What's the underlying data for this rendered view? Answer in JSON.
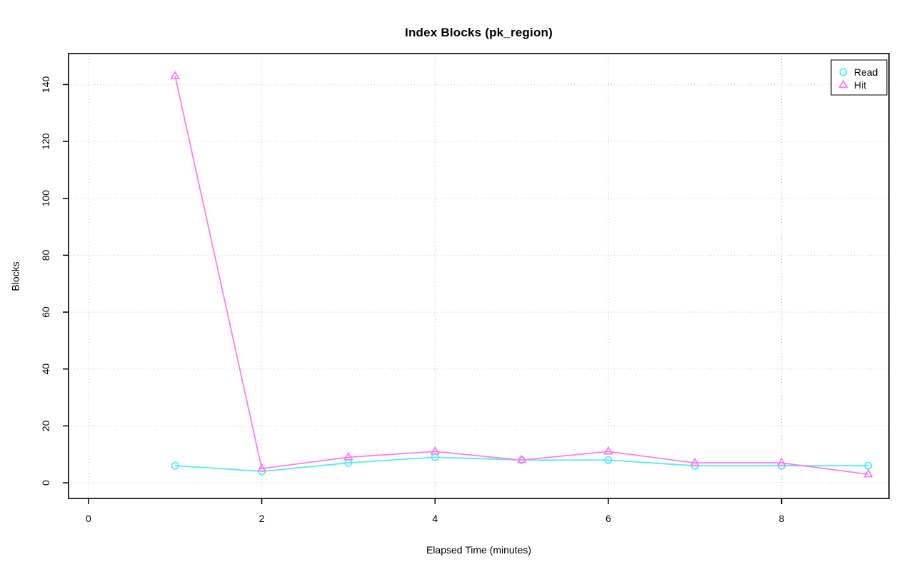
{
  "chart_data": {
    "type": "line",
    "title": "Index Blocks (pk_region)",
    "xlabel": "Elapsed Time (minutes)",
    "ylabel": "Blocks",
    "x": [
      1,
      2,
      3,
      4,
      5,
      6,
      7,
      8,
      9
    ],
    "series": [
      {
        "name": "Read",
        "marker": "circle",
        "color": "#55EDED",
        "values": [
          6,
          4,
          7,
          9,
          8,
          8,
          6,
          6,
          6
        ]
      },
      {
        "name": "Hit",
        "marker": "triangle",
        "color": "#FB7EF4",
        "values": [
          143,
          5,
          9,
          11,
          8,
          11,
          7,
          7,
          3
        ]
      }
    ],
    "xticks": [
      0,
      2,
      4,
      6,
      8
    ],
    "yticks": [
      0,
      20,
      40,
      60,
      80,
      100,
      120,
      140
    ],
    "xlim": [
      -0.23,
      9.24
    ],
    "ylim": [
      -5.5,
      150.9
    ],
    "grid": true,
    "grid_color": "#C6C6C6",
    "frame_color": "#000000",
    "legend_position": "top-right"
  }
}
